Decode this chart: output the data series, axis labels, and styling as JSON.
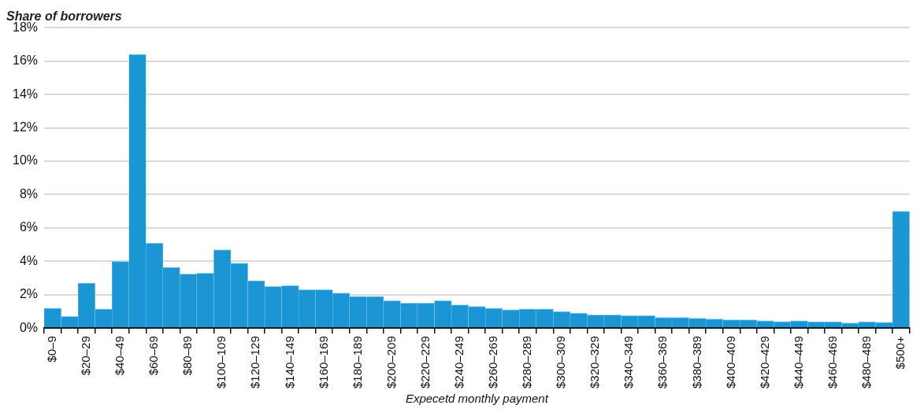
{
  "chart_data": {
    "type": "bar",
    "title": "Share of borrowers",
    "xlabel": "Expecetd monthly payment",
    "categories": [
      "$0–9",
      null,
      "$20–29",
      null,
      "$40–49",
      null,
      "$60–69",
      null,
      "$80–89",
      null,
      "$100–109",
      null,
      "$120–129",
      null,
      "$140–149",
      null,
      "$160–169",
      null,
      "$180–189",
      null,
      "$200–209",
      null,
      "$220–229",
      null,
      "$240–249",
      null,
      "$260–269",
      null,
      "$280–289",
      null,
      "$300–309",
      null,
      "$320–329",
      null,
      "$340–349",
      null,
      "$360–369",
      null,
      "$380–389",
      null,
      "$400–409",
      null,
      "$420–429",
      null,
      "$440–449",
      null,
      "$460–469",
      null,
      "$480–489",
      null,
      "$500+"
    ],
    "values": [
      1.2,
      0.7,
      2.7,
      1.15,
      4.0,
      16.4,
      5.1,
      3.65,
      3.25,
      3.3,
      4.7,
      3.9,
      2.85,
      2.5,
      2.55,
      2.3,
      2.3,
      2.1,
      1.9,
      1.9,
      1.65,
      1.5,
      1.5,
      1.65,
      1.4,
      1.3,
      1.2,
      1.1,
      1.15,
      1.15,
      1.0,
      0.9,
      0.8,
      0.8,
      0.75,
      0.75,
      0.65,
      0.65,
      0.6,
      0.55,
      0.5,
      0.5,
      0.45,
      0.4,
      0.45,
      0.38,
      0.38,
      0.32,
      0.38,
      0.35,
      7.0
    ],
    "color": "#1a96d4",
    "ylim": [
      0,
      18
    ],
    "yticks": [
      {
        "value": 0,
        "label": "0%"
      },
      {
        "value": 2,
        "label": "2%"
      },
      {
        "value": 4,
        "label": "4%"
      },
      {
        "value": 6,
        "label": "6%"
      },
      {
        "value": 8,
        "label": "8%"
      },
      {
        "value": 10,
        "label": "10%"
      },
      {
        "value": 12,
        "label": "12%"
      },
      {
        "value": 14,
        "label": "14%"
      },
      {
        "value": 16,
        "label": "16%"
      },
      {
        "value": 18,
        "label": "18%"
      }
    ],
    "grid": "y",
    "legend": false
  }
}
